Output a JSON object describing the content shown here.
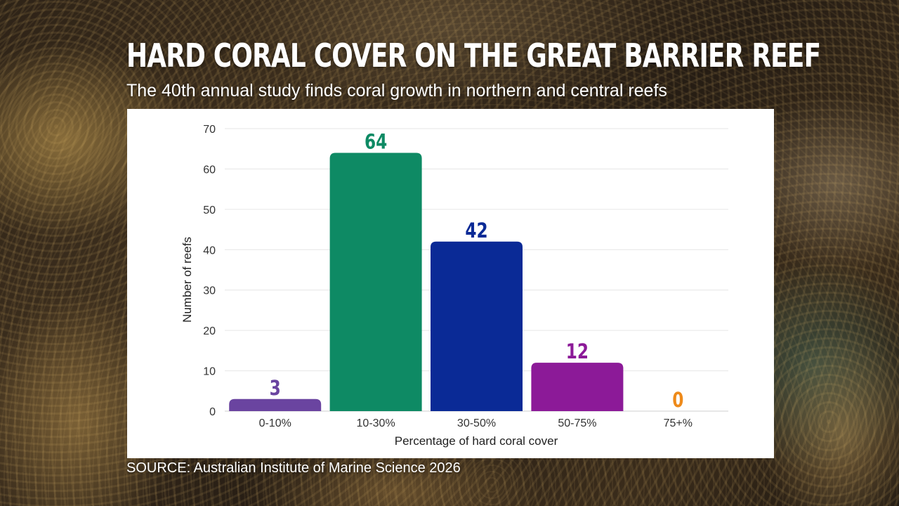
{
  "header": {
    "title": "HARD CORAL COVER ON THE GREAT BARRIER REEF",
    "subtitle": "The 40th annual study finds coral growth in northern and central reefs"
  },
  "footer": {
    "source": "SOURCE: Australian Institute of Marine Science 2026"
  },
  "chart_data": {
    "type": "bar",
    "title": "HARD CORAL COVER ON THE GREAT BARRIER REEF",
    "subtitle": "The 40th annual study finds coral growth in northern and central reefs",
    "xlabel": "Percentage of hard coral cover",
    "ylabel": "Number of reefs",
    "categories": [
      "0-10%",
      "10-30%",
      "30-50%",
      "50-75%",
      "75+%"
    ],
    "values": [
      3,
      64,
      42,
      12,
      0
    ],
    "colors": [
      "#6a44a0",
      "#0e8a64",
      "#0a2a96",
      "#8c1a98",
      "#ee8a1a"
    ],
    "ylim": [
      0,
      70
    ],
    "yticks": [
      0,
      10,
      20,
      30,
      40,
      50,
      60,
      70
    ],
    "grid": true,
    "legend": "none",
    "data_labels": true
  }
}
